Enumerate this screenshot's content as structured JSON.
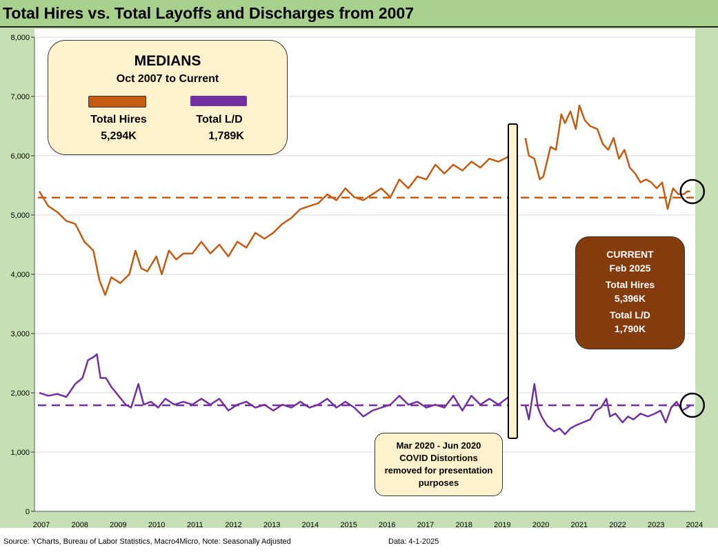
{
  "title": "Total Hires vs. Total Layoffs and Discharges from 2007",
  "medians_box": {
    "heading": "MEDIANS",
    "subheading": "Oct 2007 to Current",
    "hires_label": "Total Hires",
    "hires_value": "5,294K",
    "ld_label": "Total L/D",
    "ld_value": "1,789K"
  },
  "current_box": {
    "heading": "CURRENT",
    "date": "Feb 2025",
    "hires_label": "Total Hires",
    "hires_value": "5,396K",
    "ld_label": "Total L/D",
    "ld_value": "1,790K"
  },
  "covid_note": [
    "Mar 2020  - Jun 2020",
    "COVID Distortions",
    "removed for presentation",
    "purposes"
  ],
  "footer": {
    "source": "Source: YCharts, Bureau of Labor Statistics, Macro4Micro, Note: Seasonally Adjusted",
    "data_date": "Data: 4-1-2025"
  },
  "colors": {
    "hires": "#C55A11",
    "ld": "#7030A0"
  },
  "chart_data": {
    "type": "line",
    "title": "Total Hires vs. Total Layoffs and Discharges from 2007",
    "ylim": [
      0,
      8000
    ],
    "yticks": [
      "0",
      "1,000",
      "2,000",
      "3,000",
      "4,000",
      "5,000",
      "6,000",
      "7,000",
      "8,000"
    ],
    "xticks": [
      "2007",
      "2008",
      "2009",
      "2010",
      "2011",
      "2012",
      "2013",
      "2014",
      "2015",
      "2016",
      "2017",
      "2018",
      "2019",
      "2020",
      "2021",
      "2022",
      "2023",
      "2024"
    ],
    "gap": [
      2020.17,
      2020.45
    ],
    "medians": {
      "hires": 5294,
      "ld": 1789
    },
    "series": [
      {
        "name": "Total Hires",
        "points": [
          [
            2007.0,
            5400
          ],
          [
            2007.25,
            5150
          ],
          [
            2007.5,
            5050
          ],
          [
            2007.75,
            4900
          ],
          [
            2008.0,
            4850
          ],
          [
            2008.25,
            4550
          ],
          [
            2008.5,
            4400
          ],
          [
            2008.67,
            3900
          ],
          [
            2008.83,
            3650
          ],
          [
            2009.0,
            3950
          ],
          [
            2009.25,
            3850
          ],
          [
            2009.5,
            4000
          ],
          [
            2009.67,
            4400
          ],
          [
            2009.83,
            4100
          ],
          [
            2010.0,
            4050
          ],
          [
            2010.25,
            4300
          ],
          [
            2010.4,
            4000
          ],
          [
            2010.6,
            4400
          ],
          [
            2010.8,
            4250
          ],
          [
            2011.0,
            4350
          ],
          [
            2011.25,
            4350
          ],
          [
            2011.5,
            4550
          ],
          [
            2011.75,
            4350
          ],
          [
            2012.0,
            4500
          ],
          [
            2012.25,
            4300
          ],
          [
            2012.5,
            4550
          ],
          [
            2012.75,
            4450
          ],
          [
            2013.0,
            4700
          ],
          [
            2013.25,
            4600
          ],
          [
            2013.5,
            4700
          ],
          [
            2013.75,
            4850
          ],
          [
            2014.0,
            4950
          ],
          [
            2014.25,
            5100
          ],
          [
            2014.5,
            5150
          ],
          [
            2014.75,
            5200
          ],
          [
            2015.0,
            5350
          ],
          [
            2015.25,
            5250
          ],
          [
            2015.5,
            5450
          ],
          [
            2015.75,
            5300
          ],
          [
            2016.0,
            5250
          ],
          [
            2016.25,
            5350
          ],
          [
            2016.5,
            5450
          ],
          [
            2016.75,
            5300
          ],
          [
            2017.0,
            5600
          ],
          [
            2017.25,
            5450
          ],
          [
            2017.5,
            5650
          ],
          [
            2017.75,
            5600
          ],
          [
            2018.0,
            5850
          ],
          [
            2018.25,
            5700
          ],
          [
            2018.5,
            5850
          ],
          [
            2018.75,
            5750
          ],
          [
            2019.0,
            5900
          ],
          [
            2019.25,
            5800
          ],
          [
            2019.5,
            5950
          ],
          [
            2019.75,
            5900
          ],
          [
            2020.08,
            6000
          ],
          null,
          [
            2020.5,
            6300
          ],
          [
            2020.6,
            6000
          ],
          [
            2020.75,
            5950
          ],
          [
            2020.9,
            5600
          ],
          [
            2021.0,
            5650
          ],
          [
            2021.2,
            6150
          ],
          [
            2021.35,
            6100
          ],
          [
            2021.5,
            6700
          ],
          [
            2021.6,
            6550
          ],
          [
            2021.75,
            6750
          ],
          [
            2021.9,
            6450
          ],
          [
            2022.0,
            6850
          ],
          [
            2022.15,
            6600
          ],
          [
            2022.3,
            6500
          ],
          [
            2022.5,
            6450
          ],
          [
            2022.65,
            6200
          ],
          [
            2022.8,
            6100
          ],
          [
            2022.95,
            6300
          ],
          [
            2023.1,
            5950
          ],
          [
            2023.25,
            6100
          ],
          [
            2023.4,
            5800
          ],
          [
            2023.55,
            5700
          ],
          [
            2023.7,
            5550
          ],
          [
            2023.85,
            5600
          ],
          [
            2024.0,
            5550
          ],
          [
            2024.15,
            5450
          ],
          [
            2024.3,
            5550
          ],
          [
            2024.45,
            5100
          ],
          [
            2024.6,
            5450
          ],
          [
            2024.75,
            5350
          ],
          [
            2024.9,
            5350
          ],
          [
            2025.0,
            5400
          ],
          [
            2025.08,
            5396
          ]
        ]
      },
      {
        "name": "Total L/D",
        "points": [
          [
            2007.0,
            2000
          ],
          [
            2007.25,
            1950
          ],
          [
            2007.5,
            1980
          ],
          [
            2007.75,
            1930
          ],
          [
            2008.0,
            2150
          ],
          [
            2008.2,
            2250
          ],
          [
            2008.35,
            2550
          ],
          [
            2008.5,
            2600
          ],
          [
            2008.6,
            2650
          ],
          [
            2008.7,
            2250
          ],
          [
            2008.85,
            2250
          ],
          [
            2009.0,
            2100
          ],
          [
            2009.2,
            1950
          ],
          [
            2009.4,
            1800
          ],
          [
            2009.55,
            1750
          ],
          [
            2009.75,
            2150
          ],
          [
            2009.9,
            1800
          ],
          [
            2010.1,
            1850
          ],
          [
            2010.3,
            1750
          ],
          [
            2010.5,
            1900
          ],
          [
            2010.75,
            1800
          ],
          [
            2011.0,
            1850
          ],
          [
            2011.25,
            1800
          ],
          [
            2011.5,
            1900
          ],
          [
            2011.75,
            1800
          ],
          [
            2012.0,
            1900
          ],
          [
            2012.25,
            1700
          ],
          [
            2012.5,
            1800
          ],
          [
            2012.75,
            1850
          ],
          [
            2013.0,
            1750
          ],
          [
            2013.25,
            1800
          ],
          [
            2013.5,
            1700
          ],
          [
            2013.75,
            1800
          ],
          [
            2014.0,
            1750
          ],
          [
            2014.25,
            1850
          ],
          [
            2014.5,
            1750
          ],
          [
            2014.75,
            1800
          ],
          [
            2015.0,
            1900
          ],
          [
            2015.25,
            1750
          ],
          [
            2015.5,
            1850
          ],
          [
            2015.75,
            1750
          ],
          [
            2016.0,
            1600
          ],
          [
            2016.25,
            1700
          ],
          [
            2016.5,
            1750
          ],
          [
            2016.75,
            1800
          ],
          [
            2017.0,
            1950
          ],
          [
            2017.25,
            1800
          ],
          [
            2017.5,
            1850
          ],
          [
            2017.75,
            1750
          ],
          [
            2018.0,
            1800
          ],
          [
            2018.25,
            1750
          ],
          [
            2018.5,
            1950
          ],
          [
            2018.75,
            1700
          ],
          [
            2019.0,
            1950
          ],
          [
            2019.25,
            1800
          ],
          [
            2019.5,
            1900
          ],
          [
            2019.75,
            1800
          ],
          [
            2020.08,
            1950
          ],
          null,
          [
            2020.5,
            1800
          ],
          [
            2020.6,
            1550
          ],
          [
            2020.75,
            2150
          ],
          [
            2020.85,
            1750
          ],
          [
            2020.95,
            1600
          ],
          [
            2021.1,
            1450
          ],
          [
            2021.3,
            1350
          ],
          [
            2021.45,
            1400
          ],
          [
            2021.6,
            1300
          ],
          [
            2021.75,
            1400
          ],
          [
            2021.9,
            1450
          ],
          [
            2022.1,
            1500
          ],
          [
            2022.3,
            1550
          ],
          [
            2022.45,
            1700
          ],
          [
            2022.6,
            1750
          ],
          [
            2022.75,
            1900
          ],
          [
            2022.85,
            1600
          ],
          [
            2023.0,
            1650
          ],
          [
            2023.2,
            1500
          ],
          [
            2023.35,
            1600
          ],
          [
            2023.5,
            1550
          ],
          [
            2023.7,
            1650
          ],
          [
            2023.9,
            1600
          ],
          [
            2024.1,
            1650
          ],
          [
            2024.25,
            1700
          ],
          [
            2024.4,
            1500
          ],
          [
            2024.55,
            1750
          ],
          [
            2024.7,
            1850
          ],
          [
            2024.85,
            1700
          ],
          [
            2025.0,
            1750
          ],
          [
            2025.08,
            1790
          ]
        ]
      }
    ]
  }
}
